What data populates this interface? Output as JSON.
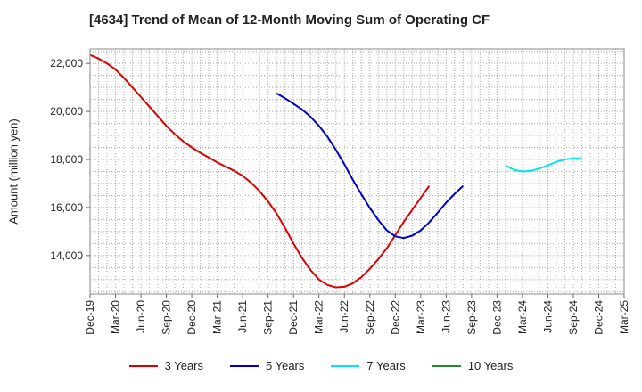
{
  "title": "[4634]  Trend of Mean of 12-Month Moving Sum of Operating CF",
  "chart_data": {
    "type": "line",
    "title": "[4634]  Trend of Mean of 12-Month Moving Sum of Operating CF",
    "xlabel": "",
    "ylabel": "Amount (million yen)",
    "ylim": [
      12400,
      22600
    ],
    "yticks": [
      14000,
      16000,
      18000,
      20000,
      22000
    ],
    "ytick_labels": [
      "14,000",
      "16,000",
      "18,000",
      "20,000",
      "22,000"
    ],
    "xticks": [
      "Dec-19",
      "Mar-20",
      "Jun-20",
      "Sep-20",
      "Dec-20",
      "Mar-21",
      "Jun-21",
      "Sep-21",
      "Dec-21",
      "Mar-22",
      "Jun-22",
      "Sep-22",
      "Dec-22",
      "Mar-23",
      "Jun-23",
      "Sep-23",
      "Dec-23",
      "Mar-24",
      "Jun-24",
      "Sep-24",
      "Dec-24",
      "Mar-25"
    ],
    "grid": true,
    "legend_position": "bottom",
    "series": [
      {
        "name": "3 Years",
        "color": "#dd0000",
        "start_index": 0,
        "values": [
          22350,
          22200,
          22000,
          21750,
          21400,
          21000,
          20600,
          20200,
          19800,
          19400,
          19050,
          18750,
          18500,
          18280,
          18080,
          17880,
          17700,
          17530,
          17320,
          17030,
          16680,
          16250,
          15750,
          15150,
          14500,
          13900,
          13400,
          13000,
          12780,
          12680,
          12700,
          12850,
          13100,
          13450,
          13850,
          14300,
          14850,
          15400,
          15900,
          16400,
          16900
        ]
      },
      {
        "name": "5 Years",
        "color": "#0000cc",
        "start_index": 22,
        "values": [
          20750,
          20550,
          20320,
          20080,
          19780,
          19400,
          18950,
          18400,
          17800,
          17150,
          16550,
          15980,
          15480,
          15050,
          14800,
          14730,
          14830,
          15050,
          15380,
          15780,
          16200,
          16570,
          16900
        ]
      },
      {
        "name": "7 Years",
        "color": "#00e5ee",
        "start_index": 49,
        "values": [
          17750,
          17570,
          17500,
          17530,
          17620,
          17750,
          17900,
          18000,
          18050,
          18050
        ]
      },
      {
        "name": "10 Years",
        "color": "#228b22",
        "start_index": 0,
        "values": []
      }
    ]
  }
}
